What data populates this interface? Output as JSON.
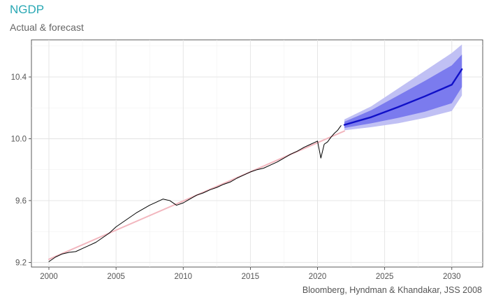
{
  "chart_data": {
    "type": "line",
    "title": "NGDP",
    "subtitle": "Actual & forecast",
    "caption": "Bloomberg, Hyndman & Khandakar, JSS 2008",
    "xlabel": "",
    "ylabel": "",
    "xlim": [
      1998.7,
      2032.3
    ],
    "ylim": [
      9.17,
      10.64
    ],
    "x_ticks": [
      2000,
      2005,
      2010,
      2015,
      2020,
      2025,
      2030
    ],
    "x_tick_labels": [
      "2000",
      "2005",
      "2010",
      "2015",
      "2020",
      "2025",
      "2030"
    ],
    "y_ticks": [
      9.2,
      9.6,
      10.0,
      10.4
    ],
    "y_tick_labels": [
      "9.2",
      "9.6",
      "10.0",
      "10.4"
    ],
    "grid": true,
    "legend": "none",
    "series": [
      {
        "role": "actual",
        "color": "#000000",
        "x": [
          2000.0,
          2000.5,
          2001.0,
          2001.5,
          2002.0,
          2002.5,
          2003.0,
          2003.5,
          2004.0,
          2004.5,
          2005.0,
          2005.5,
          2006.0,
          2006.5,
          2007.0,
          2007.5,
          2008.0,
          2008.5,
          2009.0,
          2009.5,
          2010.0,
          2010.5,
          2011.0,
          2011.5,
          2012.0,
          2012.5,
          2013.0,
          2013.5,
          2014.0,
          2014.5,
          2015.0,
          2015.5,
          2016.0,
          2016.5,
          2017.0,
          2017.5,
          2018.0,
          2018.5,
          2019.0,
          2019.5,
          2019.75,
          2020.0,
          2020.25,
          2020.5,
          2020.75,
          2021.0,
          2021.25,
          2021.5,
          2021.75
        ],
        "y": [
          9.205,
          9.235,
          9.255,
          9.265,
          9.27,
          9.29,
          9.31,
          9.33,
          9.36,
          9.39,
          9.43,
          9.46,
          9.49,
          9.52,
          9.545,
          9.57,
          9.59,
          9.61,
          9.6,
          9.57,
          9.585,
          9.61,
          9.635,
          9.65,
          9.67,
          9.685,
          9.705,
          9.72,
          9.745,
          9.765,
          9.785,
          9.8,
          9.81,
          9.83,
          9.85,
          9.875,
          9.9,
          9.92,
          9.945,
          9.965,
          9.975,
          9.985,
          9.875,
          9.965,
          9.98,
          10.01,
          10.035,
          10.055,
          10.085
        ]
      },
      {
        "role": "fitted",
        "color": "#f2b6be",
        "x": [
          2000.0,
          2022.0
        ],
        "y": [
          9.22,
          10.05
        ]
      },
      {
        "role": "forecast",
        "color": "#1010c8",
        "x": [
          2022.0,
          2024.0,
          2026.0,
          2028.0,
          2030.0,
          2030.75
        ],
        "y": [
          10.09,
          10.14,
          10.205,
          10.275,
          10.35,
          10.45
        ],
        "hi80": [
          10.11,
          10.185,
          10.28,
          10.375,
          10.475,
          10.545
        ],
        "lo80": [
          10.07,
          10.1,
          10.135,
          10.175,
          10.23,
          10.335
        ],
        "hi95": [
          10.125,
          10.21,
          10.325,
          10.44,
          10.555,
          10.61
        ],
        "lo95": [
          10.055,
          10.075,
          10.1,
          10.135,
          10.18,
          10.28
        ]
      }
    ]
  },
  "colors": {
    "title": "#2aa8b4",
    "band95": "#c0c0f4",
    "band80": "#7b7bee",
    "forecast_line": "#1010c8",
    "fitted_line": "#f2b6be",
    "actual_line": "#000000"
  }
}
